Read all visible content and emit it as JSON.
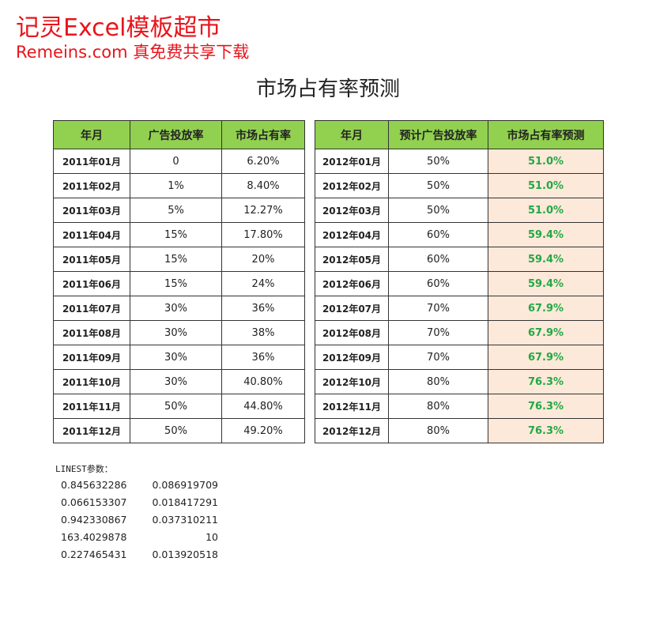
{
  "watermark": {
    "line1": "记灵Excel模板超市",
    "line2": "Remeins.com 真免费共享下载"
  },
  "title": "市场占有率预测",
  "history_table": {
    "header": [
      "年月",
      "广告投放率",
      "市场占有率"
    ],
    "rows": [
      [
        "2011年01月",
        "0",
        "6.20%"
      ],
      [
        "2011年02月",
        "1%",
        "8.40%"
      ],
      [
        "2011年03月",
        "5%",
        "12.27%"
      ],
      [
        "2011年04月",
        "15%",
        "17.80%"
      ],
      [
        "2011年05月",
        "15%",
        "20%"
      ],
      [
        "2011年06月",
        "15%",
        "24%"
      ],
      [
        "2011年07月",
        "30%",
        "36%"
      ],
      [
        "2011年08月",
        "30%",
        "38%"
      ],
      [
        "2011年09月",
        "30%",
        "36%"
      ],
      [
        "2011年10月",
        "30%",
        "40.80%"
      ],
      [
        "2011年11月",
        "50%",
        "44.80%"
      ],
      [
        "2011年12月",
        "50%",
        "49.20%"
      ]
    ]
  },
  "forecast_table": {
    "header": [
      "年月",
      "预计广告投放率",
      "市场占有率预测"
    ],
    "rows": [
      [
        "2012年01月",
        "50%",
        "51.0%"
      ],
      [
        "2012年02月",
        "50%",
        "51.0%"
      ],
      [
        "2012年03月",
        "50%",
        "51.0%"
      ],
      [
        "2012年04月",
        "60%",
        "59.4%"
      ],
      [
        "2012年05月",
        "60%",
        "59.4%"
      ],
      [
        "2012年06月",
        "60%",
        "59.4%"
      ],
      [
        "2012年07月",
        "70%",
        "67.9%"
      ],
      [
        "2012年08月",
        "70%",
        "67.9%"
      ],
      [
        "2012年09月",
        "70%",
        "67.9%"
      ],
      [
        "2012年10月",
        "80%",
        "76.3%"
      ],
      [
        "2012年11月",
        "80%",
        "76.3%"
      ],
      [
        "2012年12月",
        "80%",
        "76.3%"
      ]
    ]
  },
  "linest": {
    "label": "LINEST参数：",
    "rows": [
      [
        "0.845632286",
        "0.086919709"
      ],
      [
        "0.066153307",
        "0.018417291"
      ],
      [
        "0.942330867",
        "0.037310211"
      ],
      [
        "163.4029878",
        "10"
      ],
      [
        "0.227465431",
        "0.013920518"
      ]
    ]
  }
}
